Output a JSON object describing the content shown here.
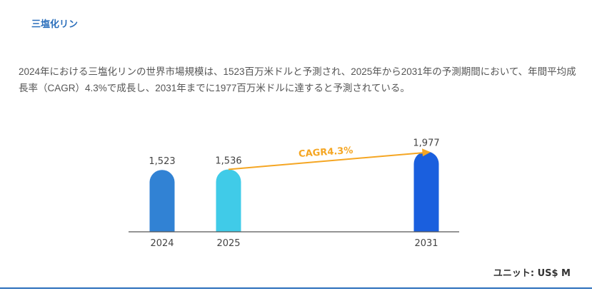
{
  "title": "三塩化リン",
  "description": "2024年における三塩化リンの世界市場規模は、1523百万米ドルと予測され、2025年から2031年の予測期間において、年間平均成長率（CAGR）4.3%で成長し、2031年までに1977百万米ドルに達すると予測されている。",
  "unit_label": "ユニット: US$ M",
  "chart_data": {
    "type": "bar",
    "categories": [
      "2024",
      "2025",
      "2031"
    ],
    "values": [
      1523,
      1536,
      1977
    ],
    "value_labels": [
      "1,523",
      "1,536",
      "1,977"
    ],
    "colors": [
      "#3182d4",
      "#40cbe8",
      "#1a5fde"
    ],
    "annotation": {
      "text": "CAGR4.3%",
      "from": "2025",
      "to": "2031",
      "color": "#f5a623"
    },
    "xlabel": "",
    "ylabel": "",
    "grid": false
  }
}
